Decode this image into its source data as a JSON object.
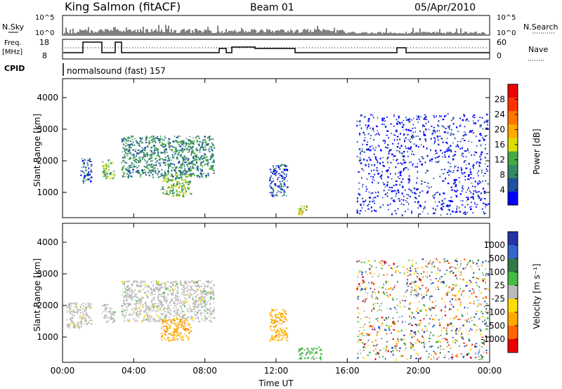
{
  "header": {
    "station": "King Salmon (fitACF)",
    "beam": "Beam 01",
    "date": "05/Apr/2010"
  },
  "strip": {
    "nsky_label": "N.Sky",
    "nsearch_label": "N.Search",
    "noise_ticks": [
      "10^5",
      "10^0"
    ],
    "freq_label": "Freq.",
    "freq_unit": "[MHz]",
    "freq_ticks": [
      "18",
      "8"
    ],
    "nave_label": "Nave",
    "nave_ticks": [
      "60",
      "0"
    ],
    "cpid_label": "CPID",
    "cpid_text": "normalsound (fast) 157"
  },
  "colors": {
    "power": [
      "#0000ff",
      "#2050a0",
      "#338866",
      "#44aa44",
      "#dddd00",
      "#ffaa00",
      "#ff7700",
      "#ff3300",
      "#ee0000"
    ],
    "velocity": [
      "#2233aa",
      "#3366cc",
      "#337744",
      "#44bb44",
      "#bbbbbb",
      "#ffdd00",
      "#ffaa00",
      "#ff6600",
      "#ee0000"
    ]
  },
  "chart_data": [
    {
      "type": "heatmap",
      "ylabel": "Slant Range [km]",
      "xlabel": "Time UT",
      "x_ticks": [
        "00:00",
        "04:00",
        "08:00",
        "12:00",
        "16:00",
        "20:00",
        "00:00"
      ],
      "y_ticks": [
        "1000",
        "2000",
        "3000",
        "4000"
      ],
      "ylim": [
        200,
        4600
      ],
      "xlim": [
        0,
        24
      ],
      "colorbar": {
        "label": "Power [dB]",
        "ticks": [
          "4",
          "8",
          "12",
          "16",
          "20",
          "24",
          "28"
        ],
        "range": [
          0,
          32
        ]
      },
      "echo_regions": [
        {
          "t": [
            1.0,
            1.6
          ],
          "r": [
            1300,
            2100
          ],
          "level": 8
        },
        {
          "t": [
            2.2,
            2.9
          ],
          "r": [
            1450,
            2050
          ],
          "level": 14
        },
        {
          "t": [
            3.3,
            8.5
          ],
          "r": [
            1500,
            2800
          ],
          "level": 10
        },
        {
          "t": [
            5.5,
            7.2
          ],
          "r": [
            900,
            1600
          ],
          "level": 14
        },
        {
          "t": [
            11.6,
            12.6
          ],
          "r": [
            900,
            1900
          ],
          "level": 6
        },
        {
          "t": [
            13.2,
            13.8
          ],
          "r": [
            300,
            600
          ],
          "level": 18
        },
        {
          "t": [
            16.5,
            23.9
          ],
          "r": [
            300,
            3500
          ],
          "level": 4
        }
      ]
    },
    {
      "type": "heatmap",
      "ylabel": "Slant Range [km]",
      "xlabel": "Time UT",
      "x_ticks": [
        "00:00",
        "04:00",
        "08:00",
        "12:00",
        "16:00",
        "20:00",
        "00:00"
      ],
      "y_ticks": [
        "1000",
        "2000",
        "3000",
        "4000"
      ],
      "ylim": [
        200,
        4600
      ],
      "xlim": [
        0,
        24
      ],
      "colorbar": {
        "label": "Velocity [m s⁻¹]",
        "ticks": [
          "1000",
          "500",
          "100",
          "25",
          "-25",
          "-100",
          "-500",
          "-1000"
        ]
      },
      "echo_regions": [
        {
          "t": [
            0.2,
            1.6
          ],
          "r": [
            1300,
            2100
          ],
          "velocity": 0
        },
        {
          "t": [
            2.2,
            2.9
          ],
          "r": [
            1450,
            2050
          ],
          "velocity": 0
        },
        {
          "t": [
            3.3,
            8.5
          ],
          "r": [
            1500,
            2800
          ],
          "velocity": 0
        },
        {
          "t": [
            5.5,
            7.2
          ],
          "r": [
            900,
            1600
          ],
          "velocity": -200
        },
        {
          "t": [
            11.6,
            12.6
          ],
          "r": [
            900,
            1900
          ],
          "velocity": -200
        },
        {
          "t": [
            13.2,
            14.5
          ],
          "r": [
            300,
            700
          ],
          "velocity": 100
        },
        {
          "t": [
            16.5,
            23.9
          ],
          "r": [
            300,
            3500
          ],
          "velocity": 0
        }
      ]
    }
  ]
}
